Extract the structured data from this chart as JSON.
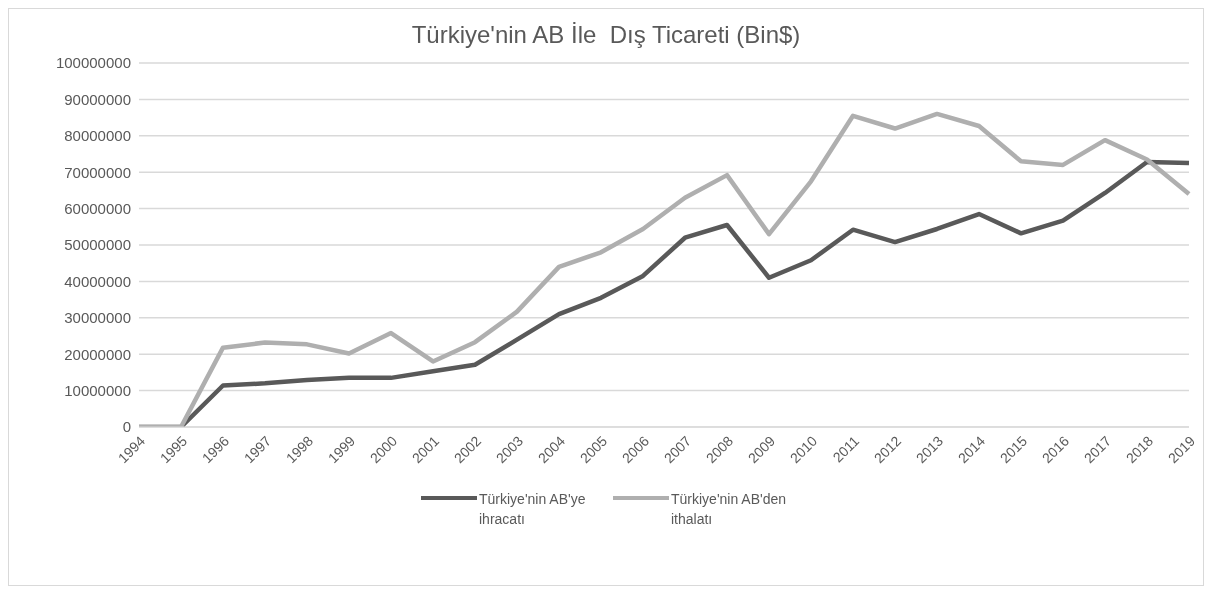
{
  "chart_data": {
    "type": "line",
    "title": "Türkiye'nin AB İle  Dış Ticareti (Bin$)",
    "categories": [
      "1994",
      "1995",
      "1996",
      "1997",
      "1998",
      "1999",
      "2000",
      "2001",
      "2002",
      "2003",
      "2004",
      "2005",
      "2006",
      "2007",
      "2008",
      "2009",
      "2010",
      "2011",
      "2012",
      "2013",
      "2014",
      "2015",
      "2016",
      "2017",
      "2018",
      "2019"
    ],
    "series": [
      {
        "name": "Türkiye'nin AB'ye ihracatı",
        "color": "#595959",
        "values": [
          0,
          0,
          11400000,
          12000000,
          12900000,
          13500000,
          13500000,
          15300000,
          17100000,
          24000000,
          31000000,
          35500000,
          41500000,
          52000000,
          55500000,
          41000000,
          45800000,
          54200000,
          50800000,
          54400000,
          58500000,
          53200000,
          56700000,
          64300000,
          72800000,
          72500000
        ]
      },
      {
        "name": "Türkiye'nin AB'den ithalatı",
        "color": "#afafaf",
        "values": [
          0,
          0,
          21800000,
          23200000,
          22700000,
          20200000,
          25800000,
          18000000,
          23300000,
          31700000,
          44000000,
          48000000,
          54400000,
          63000000,
          69200000,
          53000000,
          67500000,
          85500000,
          82000000,
          86000000,
          82700000,
          73000000,
          72000000,
          78800000,
          73500000,
          64000000
        ]
      }
    ],
    "ylim": [
      0,
      100000000
    ],
    "yticks": [
      0,
      10000000,
      20000000,
      30000000,
      40000000,
      50000000,
      60000000,
      70000000,
      80000000,
      90000000,
      100000000
    ],
    "grid": "y",
    "legend": "bottom",
    "marker": "none",
    "line_style": "solid"
  }
}
